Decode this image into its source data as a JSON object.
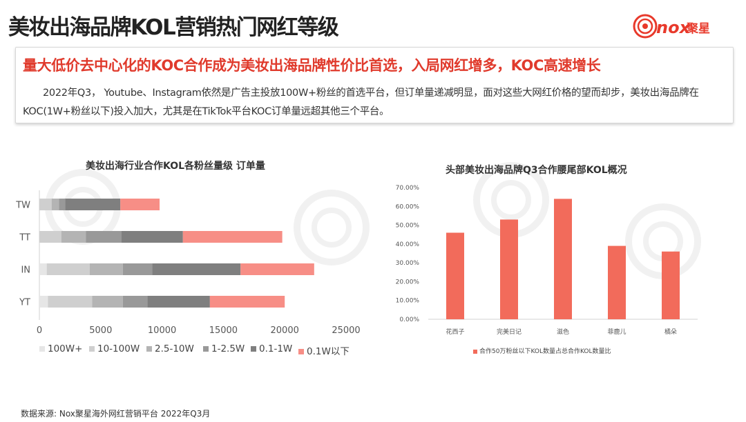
{
  "page": {
    "title": "美妆出海品牌KOL营销热门网红等级",
    "logo": {
      "latin": "nox",
      "cjk": "聚星"
    }
  },
  "summary": {
    "headline": "量大低价去中心化的KOC合作成为美妆出海品牌性价比首选，入局网红增多，KOC高速增长",
    "body": "2022年Q3， Youtube、Instagram依然是广告主投放100W+粉丝的首选平台，但订单量递减明显，面对这些大网红价格的望而却步，美妆出海品牌在KOC(1W+粉丝以下)投入加大，尤其是在TikTok平台KOC订单量远超其他三个平台。"
  },
  "chart_data": [
    {
      "type": "bar",
      "orientation": "horizontal",
      "stacked": true,
      "title": "美妆出海行业合作KOL各粉丝量级 订单量",
      "categories": [
        "TW",
        "TT",
        "IN",
        "YT"
      ],
      "series": [
        {
          "name": "100W+",
          "color": "#e6e6e6",
          "values": [
            0,
            0,
            600,
            700
          ]
        },
        {
          "name": "10-100W",
          "color": "#cfcfcf",
          "values": [
            1000,
            1800,
            3500,
            3600
          ]
        },
        {
          "name": "2.5-10W",
          "color": "#b4b4b4",
          "values": [
            600,
            2000,
            2700,
            2500
          ]
        },
        {
          "name": "1-2.5W",
          "color": "#999999",
          "values": [
            500,
            2900,
            2400,
            2000
          ]
        },
        {
          "name": "0.1-1W",
          "color": "#7f7f7f",
          "values": [
            4500,
            5000,
            7200,
            5100
          ]
        },
        {
          "name": "0.1W以下",
          "color": "#f78e86",
          "values": [
            3200,
            8100,
            6000,
            6100
          ]
        }
      ],
      "xlim": [
        0,
        25000
      ],
      "xticks": [
        "0",
        "5000",
        "10000",
        "15000",
        "20000",
        "25000"
      ],
      "legend": "bottom",
      "grid": false
    },
    {
      "type": "bar",
      "title": "头部美妆出海品牌Q3合作腰尾部KOL概况",
      "categories": [
        "花西子",
        "完美日记",
        "滋色",
        "菲鹿儿",
        "橘朵"
      ],
      "series": [
        {
          "name": "合作50万粉丝以下KOL数量占总合作KOL数量比",
          "color": "#f26b5b",
          "values": [
            0.46,
            0.53,
            0.64,
            0.39,
            0.36
          ]
        }
      ],
      "ylim": [
        0,
        0.7
      ],
      "yticks": [
        "0.00%",
        "10.00%",
        "20.00%",
        "30.00%",
        "40.00%",
        "50.00%",
        "60.00%",
        "70.00%"
      ],
      "legend": "bottom",
      "grid": false
    }
  ],
  "source": "数据来源: Nox聚星海外网红营销平台 2022年Q3月"
}
